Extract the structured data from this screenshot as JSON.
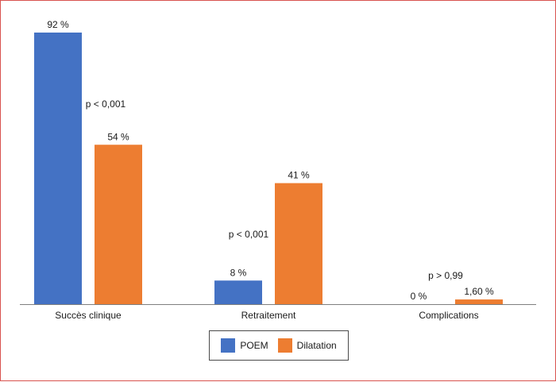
{
  "chart_data": {
    "type": "bar",
    "title": "",
    "xlabel": "",
    "ylabel": "",
    "categories": [
      "Succès clinique",
      "Retraitement",
      "Complications"
    ],
    "series": [
      {
        "name": "POEM",
        "color": "#4472C4",
        "values": [
          92,
          8,
          0
        ],
        "labels": [
          "92 %",
          "8 %",
          "0 %"
        ]
      },
      {
        "name": "Dilatation",
        "color": "#ED7D31",
        "values": [
          54,
          41,
          1.6
        ],
        "labels": [
          "54 %",
          "41 %",
          "1,60 %"
        ]
      }
    ],
    "annotations": [
      "p < 0,001",
      "p < 0,001",
      "p > 0,99"
    ],
    "ylim": [
      0,
      92
    ],
    "grid": false,
    "legend_position": "bottom"
  }
}
